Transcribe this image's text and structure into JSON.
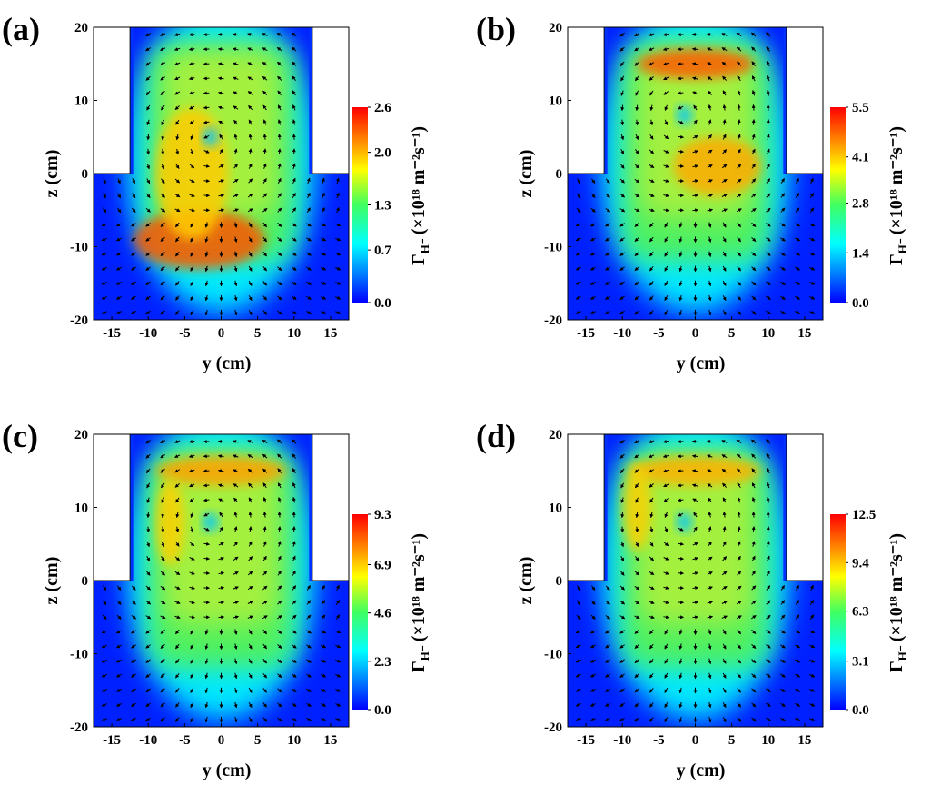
{
  "chart_data": [
    {
      "type": "heatmap",
      "panel_label": "(a)",
      "xlabel": "y (cm)",
      "ylabel": "z (cm)",
      "xlim": [
        -17.5,
        17.5
      ],
      "ylim": [
        -20,
        20
      ],
      "xticks": [
        -15,
        -10,
        -5,
        0,
        5,
        10,
        15
      ],
      "yticks": [
        -20,
        -10,
        0,
        10,
        20
      ],
      "colorbar_label": {
        "symbol": "Γ",
        "subscript": "H⁻",
        "unit": "(×10¹⁸ m⁻²s⁻¹)"
      },
      "clim": [
        0,
        2.6
      ],
      "cticks": [
        {
          "value": 0,
          "label": "0.0"
        },
        0.7,
        1.3,
        {
          "value": 2,
          "label": "2.0"
        },
        2.6
      ]
    },
    {
      "type": "heatmap",
      "panel_label": "(b)",
      "xlabel": "y (cm)",
      "ylabel": "z (cm)",
      "xlim": [
        -17.5,
        17.5
      ],
      "ylim": [
        -20,
        20
      ],
      "xticks": [
        -15,
        -10,
        -5,
        0,
        5,
        10,
        15
      ],
      "yticks": [
        -20,
        -10,
        0,
        10,
        20
      ],
      "colorbar_label": {
        "symbol": "Γ",
        "subscript": "H⁻",
        "unit": "(×10¹⁸ m⁻²s⁻¹)"
      },
      "clim": [
        0,
        5.5
      ],
      "cticks": [
        {
          "value": 0,
          "label": "0.0"
        },
        1.4,
        2.8,
        4.1,
        5.5
      ]
    },
    {
      "type": "heatmap",
      "panel_label": "(c)",
      "xlabel": "y (cm)",
      "ylabel": "z (cm)",
      "xlim": [
        -17.5,
        17.5
      ],
      "ylim": [
        -20,
        20
      ],
      "xticks": [
        -15,
        -10,
        -5,
        0,
        5,
        10,
        15
      ],
      "yticks": [
        -20,
        -10,
        0,
        10,
        20
      ],
      "colorbar_label": {
        "symbol": "Γ",
        "subscript": "H⁻",
        "unit": "(×10¹⁸ m⁻²s⁻¹)"
      },
      "clim": [
        0,
        9.3
      ],
      "cticks": [
        {
          "value": 0,
          "label": "0.0"
        },
        2.3,
        4.6,
        6.9,
        9.3
      ]
    },
    {
      "type": "heatmap",
      "panel_label": "(d)",
      "xlabel": "y (cm)",
      "ylabel": "z (cm)",
      "xlim": [
        -17.5,
        17.5
      ],
      "ylim": [
        -20,
        20
      ],
      "xticks": [
        -15,
        -10,
        -5,
        0,
        5,
        10,
        15
      ],
      "yticks": [
        -20,
        -10,
        0,
        10,
        20
      ],
      "colorbar_label": {
        "symbol": "Γ",
        "subscript": "H⁻",
        "unit": "(×10¹⁸ m⁻²s⁻¹)"
      },
      "clim": [
        0,
        12.5
      ],
      "cticks": [
        {
          "value": 0,
          "label": "0.0"
        },
        3.1,
        6.3,
        9.4,
        12.5
      ]
    }
  ]
}
